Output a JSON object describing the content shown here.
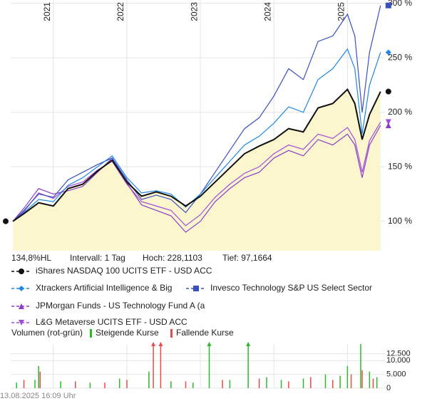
{
  "chart_data": {
    "type": "line",
    "header": [
      "134,8%HL",
      "Intervall: 1 Tag",
      "Hoch: 228,1103",
      "Tief: 97,1664"
    ],
    "x": [
      2020.45,
      2020.6,
      2020.8,
      2021.0,
      2021.2,
      2021.4,
      2021.6,
      2021.8,
      2022.0,
      2022.2,
      2022.4,
      2022.6,
      2022.8,
      2023.0,
      2023.2,
      2023.4,
      2023.6,
      2023.8,
      2024.0,
      2024.2,
      2024.4,
      2024.6,
      2024.8,
      2025.0,
      2025.1,
      2025.2,
      2025.3,
      2025.45
    ],
    "xlim": [
      2020.42,
      2025.51
    ],
    "xticks": [
      2021,
      2022,
      2023,
      2024,
      2025
    ],
    "ylim": [
      73,
      303
    ],
    "yticks": [
      {
        "value": 100,
        "label": "100 %"
      },
      {
        "value": 150,
        "label": "150 %"
      },
      {
        "value": 200,
        "label": "200 %"
      },
      {
        "value": 250,
        "label": "250 %"
      },
      {
        "value": 300,
        "label": "300 %"
      }
    ],
    "grid": true,
    "fill_color": "#fcf6cf",
    "series": [
      {
        "name": "iShares NASDAQ 100 UCITS ETF - USD ACC",
        "color": "#111111",
        "marker": "circle",
        "fill": true,
        "values": [
          100,
          107,
          117,
          114,
          130,
          134,
          146,
          156,
          136,
          123,
          127,
          123,
          114,
          123,
          136,
          149,
          162,
          169,
          175,
          185,
          182,
          204,
          208,
          221,
          208,
          175,
          198,
          219
        ]
      },
      {
        "name": "Xtrackers Artificial Intelligence & Big",
        "color": "#1e88e5",
        "marker": "diamond",
        "values": [
          100,
          108,
          120,
          118,
          133,
          140,
          150,
          160,
          140,
          126,
          128,
          125,
          113,
          125,
          140,
          155,
          170,
          178,
          190,
          205,
          200,
          230,
          240,
          258,
          240,
          180,
          225,
          255
        ]
      },
      {
        "name": "Invesco Technology S&P US Select Sector",
        "color": "#3a4fc0",
        "marker": "square",
        "values": [
          100,
          110,
          125,
          122,
          138,
          145,
          152,
          158,
          138,
          120,
          124,
          120,
          108,
          125,
          145,
          165,
          185,
          195,
          215,
          240,
          230,
          265,
          270,
          290,
          270,
          200,
          255,
          298
        ]
      },
      {
        "name": "JPMorgan Funds - US Technology Fund A (a",
        "color": "#8a3ec8",
        "marker": "triangle-up",
        "values": [
          100,
          112,
          130,
          125,
          128,
          132,
          145,
          158,
          135,
          115,
          110,
          105,
          90,
          100,
          118,
          130,
          140,
          145,
          158,
          165,
          160,
          175,
          170,
          180,
          170,
          140,
          170,
          188
        ]
      },
      {
        "name": "L&G Metaverse UCITS ETF - USD ACC",
        "color": "#a04cd8",
        "marker": "triangle-down",
        "values": [
          100,
          109,
          126,
          121,
          132,
          136,
          147,
          155,
          134,
          118,
          114,
          110,
          96,
          106,
          122,
          134,
          144,
          150,
          162,
          170,
          166,
          180,
          176,
          186,
          175,
          145,
          174,
          191
        ]
      }
    ],
    "volume": {
      "title": "Volumen (rot-grün)",
      "ylim": [
        0,
        16000
      ],
      "yticks": [
        0,
        {
          "value": 5000,
          "label": "5.000"
        },
        {
          "value": 10000,
          "label": "10.000"
        },
        {
          "value": 12500,
          "label": "12.500"
        }
      ],
      "series": [
        {
          "name": "Steigende Kurse",
          "color": "#2db82d",
          "x": [
            2020.5,
            2020.75,
            2020.8,
            2021.1,
            2021.5,
            2021.9,
            2022.3,
            2022.6,
            2022.9,
            2023.12,
            2023.4,
            2023.65,
            2023.9,
            2024.1,
            2024.4,
            2024.7,
            2024.9,
            2025.0,
            2025.18,
            2025.3,
            2025.4
          ],
          "values": [
            2000,
            3000,
            8000,
            2500,
            2000,
            3500,
            6000,
            2500,
            2000,
            20000,
            3000,
            20000,
            4000,
            3000,
            3500,
            5000,
            4500,
            8000,
            16000,
            6000,
            4000
          ]
        },
        {
          "name": "Fallende Kurse",
          "color": "#e84a4a",
          "x": [
            2020.6,
            2020.82,
            2021.3,
            2021.7,
            2022.0,
            2022.36,
            2022.46,
            2022.8,
            2023.3,
            2023.8,
            2024.2,
            2024.5,
            2024.8,
            2025.05,
            2025.2,
            2025.35
          ],
          "values": [
            3000,
            6000,
            2500,
            2000,
            3000,
            20000,
            20000,
            2500,
            3000,
            3500,
            2500,
            4000,
            3000,
            5000,
            6500,
            3500
          ]
        }
      ]
    },
    "timestamp": "13.08.2025 16:09 Uhr"
  }
}
